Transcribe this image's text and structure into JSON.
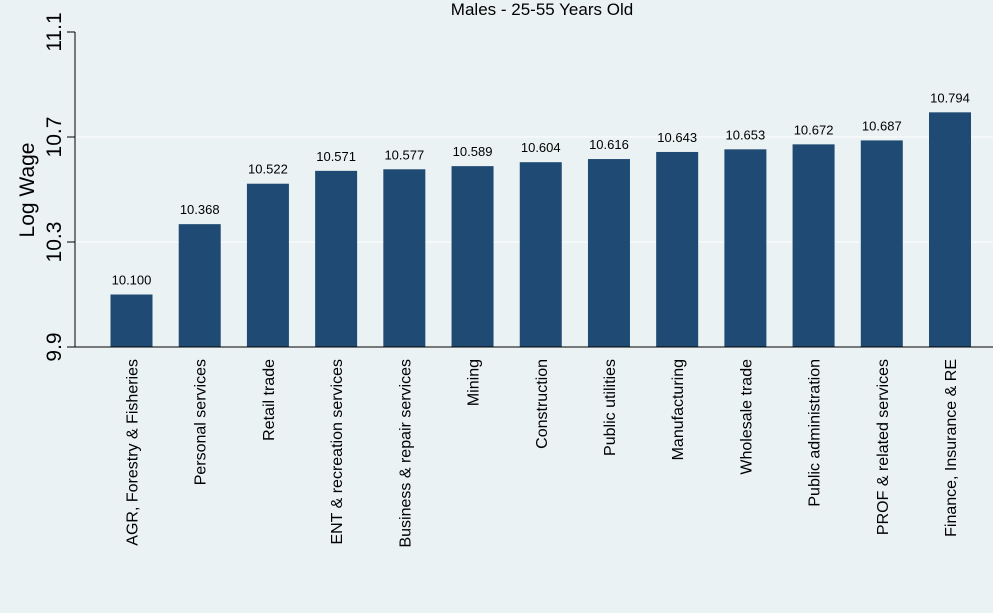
{
  "chart_data": {
    "type": "bar",
    "title": "Males - 25-55 Years Old",
    "xlabel": "",
    "ylabel": "Log Wage",
    "ylim": [
      9.9,
      11.1
    ],
    "yticks": [
      "9.9",
      "10.3",
      "10.7",
      "11.1"
    ],
    "ytick_values": [
      9.9,
      10.3,
      10.7,
      11.1
    ],
    "grid": true,
    "legend": "none",
    "bar_color": "#1f4a73",
    "background_color": "#eaf2f3",
    "categories": [
      "AGR, Forestry & Fisheries",
      "Personal services",
      "Retail trade",
      "ENT & recreation services",
      "Business & repair services",
      "Mining",
      "Construction",
      "Public utilities",
      "Manufacturing",
      "Wholesale trade",
      "Public administration",
      "PROF & related services",
      "Finance, Insurance & RE"
    ],
    "values": [
      10.1,
      10.368,
      10.522,
      10.571,
      10.577,
      10.589,
      10.604,
      10.616,
      10.643,
      10.653,
      10.672,
      10.687,
      10.794
    ],
    "data_labels": [
      "10.100",
      "10.368",
      "10.522",
      "10.571",
      "10.577",
      "10.589",
      "10.604",
      "10.616",
      "10.643",
      "10.653",
      "10.672",
      "10.687",
      "10.794"
    ]
  }
}
